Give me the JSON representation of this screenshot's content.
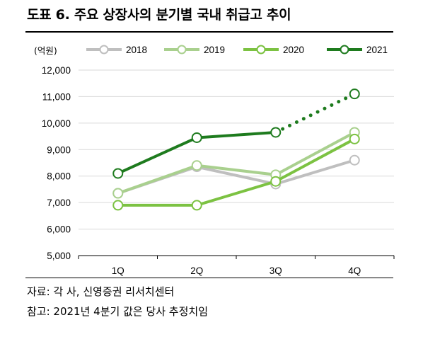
{
  "title": "도표 6. 주요 상장사의 분기별 국내 취급고 추이",
  "notes": {
    "source": "자료: 각 사, 신영증권 리서치센터",
    "remark": "참고: 2021년 4분기 값은 당사 추정치임"
  },
  "chart_data": {
    "type": "line",
    "unit_label": "(억원)",
    "categories": [
      "1Q",
      "2Q",
      "3Q",
      "4Q"
    ],
    "ylim": [
      5000,
      12000
    ],
    "yticks": [
      5000,
      6000,
      7000,
      8000,
      9000,
      10000,
      11000,
      12000
    ],
    "ytick_labels": [
      "5,000",
      "6,000",
      "7,000",
      "8,000",
      "9,000",
      "10,000",
      "11,000",
      "12,000"
    ],
    "grid": true,
    "legend_position": "top",
    "series": [
      {
        "name": "2018",
        "values": [
          7350,
          8350,
          7700,
          8600
        ],
        "color": "#bfbfbf",
        "dashed_from": null
      },
      {
        "name": "2019",
        "values": [
          7350,
          8400,
          8050,
          9650
        ],
        "color": "#a9d08e",
        "dashed_from": null
      },
      {
        "name": "2020",
        "values": [
          6900,
          6900,
          7800,
          9400
        ],
        "color": "#7cc242",
        "dashed_from": null
      },
      {
        "name": "2021",
        "values": [
          8100,
          9450,
          9650,
          11100
        ],
        "color": "#1e7b1e",
        "dashed_from": 2
      }
    ]
  }
}
